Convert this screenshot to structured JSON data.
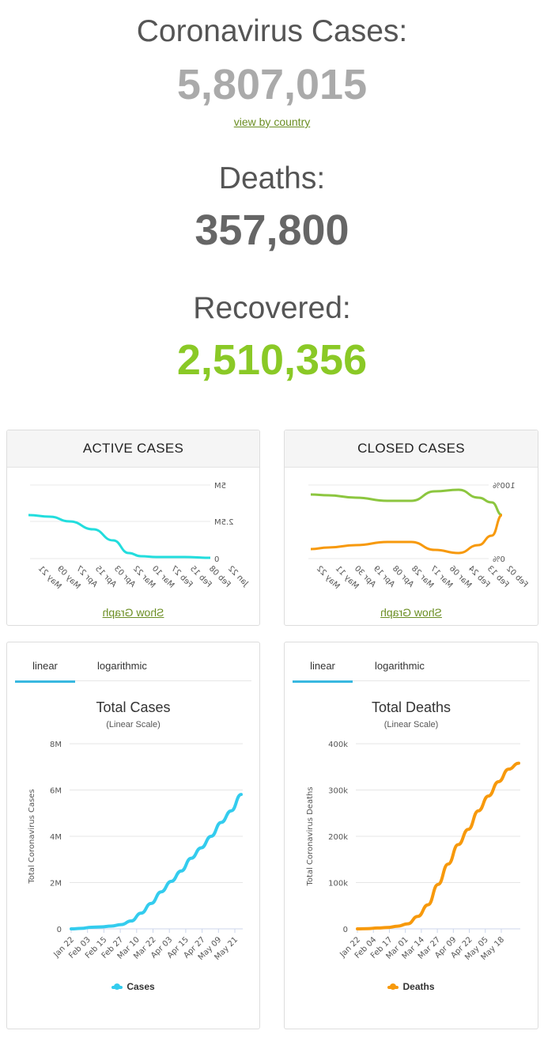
{
  "stats": {
    "cases_label": "Coronavirus Cases:",
    "cases_value": "5,807,015",
    "view_link": "view by country",
    "deaths_label": "Deaths:",
    "deaths_value": "357,800",
    "recovered_label": "Recovered:",
    "recovered_value": "2,510,356"
  },
  "colors": {
    "cases_value": "#aaaaaa",
    "deaths_value": "#666666",
    "recovered_value": "#8ac926",
    "cases_line": "#33ccee",
    "deaths_line": "#f7990c",
    "closed_green": "#8cc63f",
    "closed_orange": "#f7990c",
    "active_line": "#22dddd"
  },
  "panels": {
    "active": {
      "title": "ACTIVE CASES",
      "show_link": "Show Graph",
      "y_labels": [
        "5M",
        "2.5M",
        "0"
      ],
      "x_labels": [
        "Jan 22",
        "Feb 08",
        "Feb 15",
        "Feb 27",
        "Mar 10",
        "Mar 22",
        "Apr 03",
        "Apr 15",
        "Apr 27",
        "May 09",
        "May 21"
      ]
    },
    "closed": {
      "title": "CLOSED CASES",
      "show_link": "Show Graph",
      "y_labels": [
        "100%",
        "0%"
      ],
      "x_labels": [
        "Feb 02",
        "Feb 13",
        "Feb 24",
        "Mar 06",
        "Mar 17",
        "Mar 28",
        "Apr 08",
        "Apr 19",
        "Apr 30",
        "May 11",
        "May 22"
      ]
    }
  },
  "tabs": {
    "linear": "linear",
    "log": "logarithmic"
  },
  "chart_data": [
    {
      "type": "line",
      "title": "Total Cases",
      "subtitle": "(Linear Scale)",
      "ylabel": "Total Coronavirus Cases",
      "xlabel": "",
      "y_ticks": [
        "0",
        "2M",
        "4M",
        "6M",
        "8M"
      ],
      "ylim": [
        0,
        8000000
      ],
      "categories": [
        "Jan 22",
        "Feb 03",
        "Feb 15",
        "Feb 27",
        "Mar 10",
        "Mar 22",
        "Apr 03",
        "Apr 15",
        "Apr 27",
        "May 09",
        "May 21"
      ],
      "series": [
        {
          "name": "Cases",
          "x": [
            "Jan 22",
            "Feb 03",
            "Feb 15",
            "Feb 27",
            "Mar 10",
            "Mar 16",
            "Mar 22",
            "Mar 28",
            "Apr 03",
            "Apr 09",
            "Apr 15",
            "Apr 21",
            "Apr 27",
            "May 03",
            "May 09",
            "May 15",
            "May 21",
            "May 27"
          ],
          "values": [
            555,
            20000,
            70000,
            85000,
            120000,
            185000,
            340000,
            680000,
            1100000,
            1600000,
            2050000,
            2500000,
            3050000,
            3500000,
            4000000,
            4600000,
            5100000,
            5807015
          ]
        }
      ],
      "grid": true,
      "legend": "bottom"
    },
    {
      "type": "line",
      "title": "Total Deaths",
      "subtitle": "(Linear Scale)",
      "ylabel": "Total Coronavirus Deaths",
      "xlabel": "",
      "y_ticks": [
        "0",
        "100k",
        "200k",
        "300k",
        "400k"
      ],
      "ylim": [
        0,
        400000
      ],
      "categories": [
        "Jan 22",
        "Feb 04",
        "Feb 17",
        "Mar 01",
        "Mar 14",
        "Mar 27",
        "Apr 09",
        "Apr 22",
        "May 05",
        "May 18"
      ],
      "series": [
        {
          "name": "Deaths",
          "x": [
            "Jan 22",
            "Feb 04",
            "Feb 17",
            "Mar 01",
            "Mar 14",
            "Mar 20",
            "Mar 27",
            "Apr 02",
            "Apr 09",
            "Apr 15",
            "Apr 22",
            "Apr 28",
            "May 05",
            "May 11",
            "May 18",
            "May 24",
            "May 27"
          ],
          "values": [
            17,
            490,
            1870,
            3000,
            5800,
            11000,
            27000,
            52000,
            96000,
            140000,
            182000,
            215000,
            255000,
            287000,
            318000,
            345000,
            357800
          ]
        }
      ],
      "grid": true,
      "legend": "bottom"
    }
  ]
}
